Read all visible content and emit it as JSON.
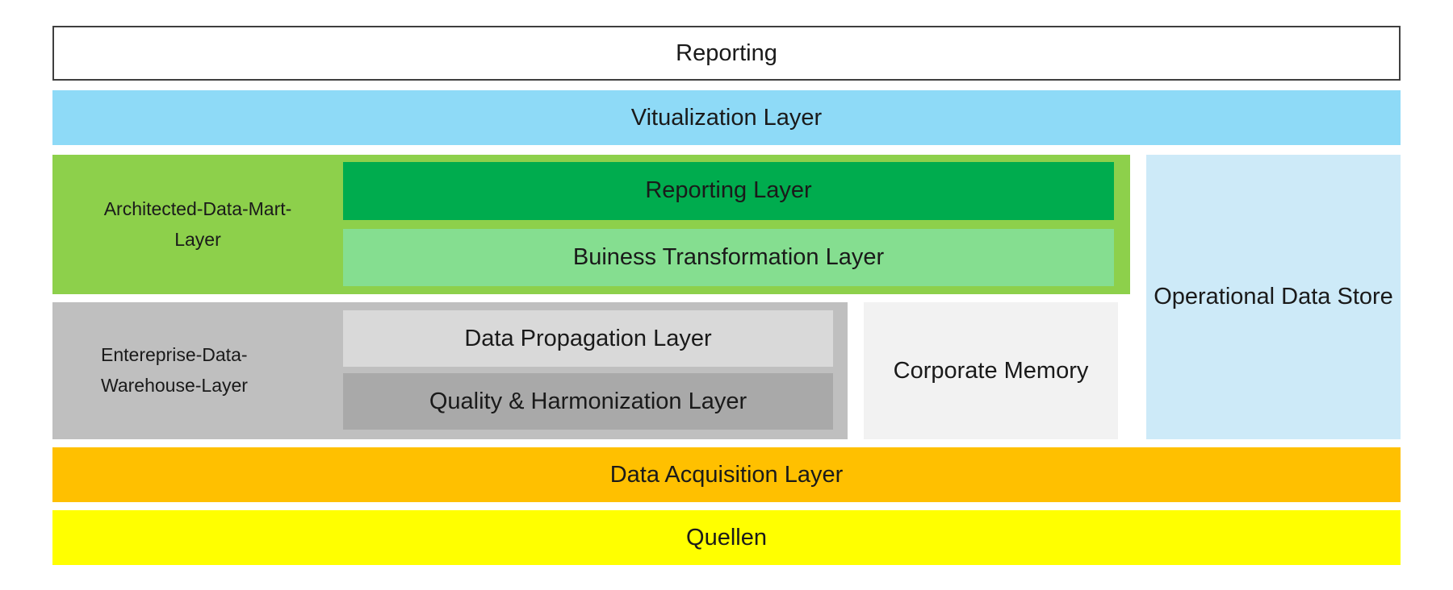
{
  "colors": {
    "visualization_layer": "#8EDAF7",
    "green_container": "#8DD04B",
    "reporting_layer": "#00AC4E",
    "business_transformation": "#85DE90",
    "gray_container": "#BFBFBF",
    "data_propagation": "#D9D9D9",
    "quality_harmonization": "#A9A9A9",
    "corporate_memory": "#F2F2F2",
    "operational_data_store": "#CDEAF8",
    "data_acquisition": "#FFC000",
    "quellen": "#FFFF00"
  },
  "boxes": {
    "reporting": {
      "label": "Reporting"
    },
    "visualization_layer": {
      "label": "Vitualization Layer"
    },
    "architected_data_mart": {
      "line1": "Architected-Data-Mart-",
      "line2": "Layer"
    },
    "reporting_layer": {
      "label": "Reporting Layer"
    },
    "business_transformation": {
      "label": "Buiness Transformation Layer"
    },
    "enterprise_dwh": {
      "line1": "Entereprise-Data-",
      "line2": "Warehouse-Layer"
    },
    "data_propagation": {
      "label": "Data Propagation Layer"
    },
    "quality_harmonization": {
      "label": "Quality & Harmonization Layer"
    },
    "corporate_memory": {
      "label": "Corporate Memory"
    },
    "operational_data_store": {
      "label": "Operational Data Store"
    },
    "data_acquisition": {
      "label": "Data Acquisition Layer"
    },
    "quellen": {
      "label": "Quellen"
    }
  }
}
